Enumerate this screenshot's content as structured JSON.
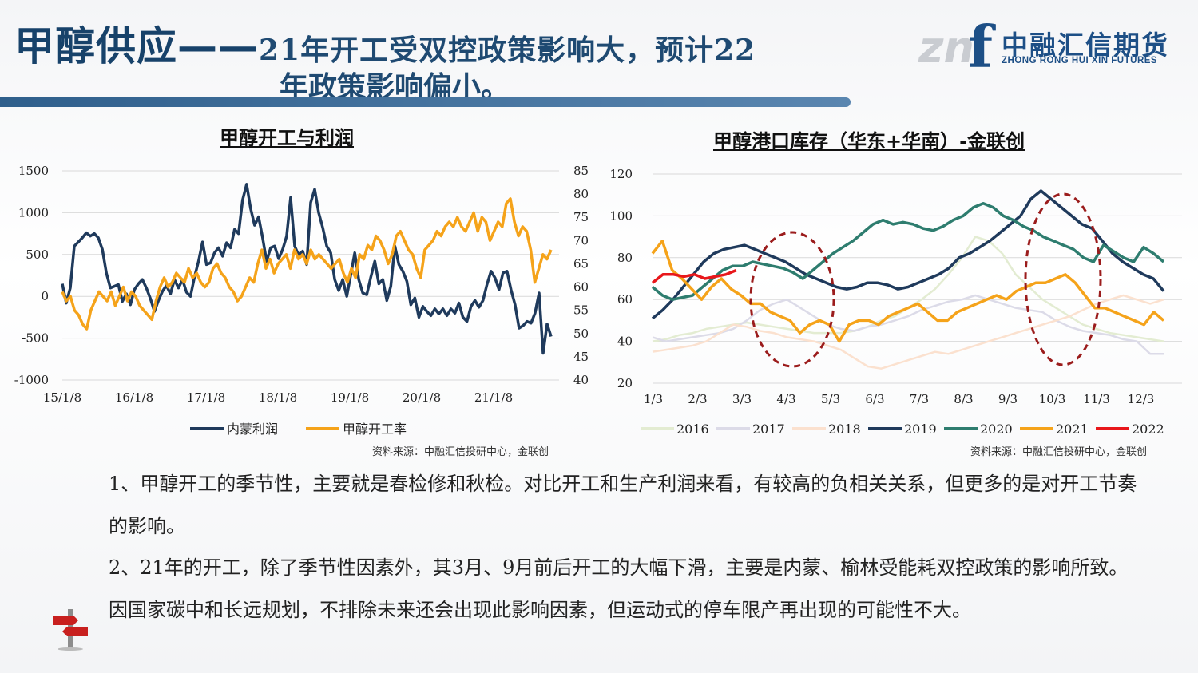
{
  "slide": {
    "title_main": "甲醇供应——",
    "title_rest": "21年开工受双控政策影响大，预计22",
    "title_line2": "年政策影响偏小。"
  },
  "logo": {
    "mark_zn": "zn",
    "mark_f": "f",
    "name_cn": "中融汇信期货",
    "name_en": "ZHONG RONG HUI XIN FUTURES"
  },
  "chart_data": [
    {
      "type": "line",
      "title": "甲醇开工与利润",
      "x_ticks": [
        "15/1/8",
        "16/1/8",
        "17/1/8",
        "18/1/8",
        "19/1/8",
        "20/1/8",
        "21/1/8"
      ],
      "y_left": {
        "ticks": [
          "1500",
          "1000",
          "500",
          "0",
          "-500",
          "-1000"
        ],
        "range": [
          -1000,
          1500
        ]
      },
      "y_right": {
        "ticks": [
          "85",
          "80",
          "75",
          "70",
          "65",
          "60",
          "55",
          "50",
          "45",
          "40"
        ],
        "range": [
          40,
          85
        ]
      },
      "series": [
        {
          "name": "内蒙利润",
          "axis": "left",
          "color": "#1f3a5c",
          "values": [
            150,
            -80,
            100,
            600,
            650,
            700,
            760,
            720,
            750,
            700,
            560,
            280,
            100,
            120,
            140,
            -60,
            30,
            -100,
            80,
            150,
            200,
            100,
            -30,
            -180,
            -50,
            60,
            130,
            30,
            200,
            100,
            200,
            50,
            0,
            230,
            420,
            650,
            380,
            400,
            520,
            580,
            480,
            640,
            580,
            800,
            750,
            1150,
            1340,
            1050,
            850,
            950,
            700,
            420,
            580,
            600,
            450,
            560,
            720,
            1180,
            600,
            490,
            540,
            380,
            1120,
            1280,
            1000,
            820,
            600,
            520,
            200,
            70,
            200,
            0,
            260,
            520,
            200,
            40,
            20,
            230,
            420,
            150,
            200,
            -50,
            120,
            600,
            380,
            300,
            180,
            -100,
            -20,
            -250,
            -120,
            -180,
            -230,
            -150,
            -210,
            -150,
            -230,
            -150,
            -200,
            -80,
            -250,
            -300,
            -120,
            -50,
            -130,
            -50,
            140,
            300,
            220,
            80,
            280,
            300,
            80,
            -100,
            -380,
            -350,
            -300,
            -320,
            -200,
            40,
            -680,
            -330,
            -480
          ]
        },
        {
          "name": "甲醇开工率",
          "axis": "right",
          "color": "#f5a31a",
          "values": [
            59,
            57,
            58,
            55,
            54,
            52,
            51,
            55,
            57,
            59,
            58,
            57,
            59,
            56,
            58,
            60,
            57,
            59,
            58,
            56,
            55,
            54,
            53,
            57,
            60,
            62,
            60,
            61,
            63,
            62,
            61,
            64,
            62,
            63,
            61,
            60,
            61,
            64,
            65,
            63,
            62,
            60,
            59,
            57,
            58,
            60,
            62,
            61,
            65,
            68,
            64,
            66,
            63,
            65,
            66,
            67,
            64,
            68,
            66,
            67,
            65,
            68,
            66,
            67,
            66,
            65,
            64,
            65,
            66,
            63,
            61,
            64,
            62,
            67,
            66,
            69,
            68,
            71,
            70,
            68,
            65,
            67,
            71,
            72,
            70,
            68,
            67,
            64,
            62,
            68,
            69,
            70,
            72,
            71,
            73,
            74,
            73,
            75,
            73,
            72,
            74,
            76,
            72,
            75,
            74,
            70,
            72,
            74,
            73,
            78,
            79,
            74,
            71,
            73,
            72,
            68,
            61,
            64,
            67,
            66,
            68
          ]
        }
      ],
      "source": "资料来源：中融汇信投研中心，金联创"
    },
    {
      "type": "line",
      "title": "甲醇港口库存（华东+华南）-金联创",
      "x_ticks": [
        "1/3",
        "2/3",
        "3/3",
        "4/3",
        "5/3",
        "6/3",
        "7/3",
        "8/3",
        "9/3",
        "10/3",
        "11/3",
        "12/3"
      ],
      "y_ticks": [
        "120",
        "100",
        "80",
        "60",
        "40",
        "20"
      ],
      "y_range": [
        20,
        120
      ],
      "annotations": [
        "dashed ellipse around Apr–May",
        "dashed ellipse around Sep–Oct"
      ],
      "series": [
        {
          "name": "2016",
          "color": "#e3ecd2",
          "values": [
            40,
            41,
            43,
            44,
            46,
            47,
            48,
            49,
            48,
            47,
            46,
            45,
            44,
            44,
            44,
            45,
            47,
            50,
            52,
            56,
            60,
            65,
            72,
            80,
            90,
            88,
            82,
            72,
            66,
            60,
            56,
            52,
            48,
            46,
            44,
            43,
            42,
            41,
            40
          ]
        },
        {
          "name": "2017",
          "color": "#dcdbe8",
          "values": [
            42,
            40,
            41,
            42,
            43,
            44,
            46,
            50,
            55,
            58,
            60,
            56,
            52,
            48,
            46,
            45,
            47,
            48,
            50,
            52,
            55,
            57,
            59,
            60,
            62,
            60,
            58,
            56,
            55,
            54,
            50,
            47,
            45,
            44,
            43,
            41,
            40,
            34,
            34
          ]
        },
        {
          "name": "2018",
          "color": "#fbe1cf",
          "values": [
            35,
            36,
            37,
            38,
            40,
            44,
            48,
            47,
            45,
            44,
            42,
            41,
            40,
            38,
            36,
            32,
            28,
            27,
            29,
            31,
            33,
            35,
            34,
            36,
            38,
            40,
            42,
            44,
            46,
            48,
            50,
            52,
            55,
            58,
            60,
            62,
            60,
            58,
            60
          ]
        },
        {
          "name": "2019",
          "color": "#1f3a5c",
          "values": [
            51,
            55,
            60,
            66,
            72,
            78,
            82,
            84,
            85,
            86,
            84,
            82,
            80,
            78,
            75,
            72,
            70,
            68,
            66,
            65,
            66,
            68,
            68,
            67,
            65,
            66,
            68,
            70,
            72,
            75,
            80,
            82,
            85,
            88,
            92,
            96,
            100,
            108,
            112,
            108,
            104,
            100,
            96,
            94,
            88,
            82,
            78,
            75,
            72,
            70,
            64
          ]
        },
        {
          "name": "2020",
          "color": "#2e7d6f",
          "values": [
            66,
            62,
            60,
            61,
            62,
            66,
            70,
            74,
            76,
            76,
            78,
            77,
            76,
            75,
            73,
            70,
            74,
            78,
            82,
            85,
            88,
            92,
            96,
            98,
            96,
            97,
            96,
            94,
            93,
            95,
            98,
            100,
            104,
            106,
            104,
            100,
            98,
            95,
            93,
            90,
            88,
            86,
            84,
            80,
            78,
            86,
            83,
            80,
            78,
            85,
            82,
            78
          ]
        },
        {
          "name": "2021",
          "color": "#f5a31a",
          "values": [
            82,
            88,
            74,
            70,
            65,
            60,
            66,
            70,
            65,
            62,
            58,
            58,
            54,
            52,
            50,
            44,
            48,
            50,
            48,
            40,
            48,
            50,
            50,
            48,
            52,
            54,
            56,
            58,
            54,
            50,
            50,
            54,
            56,
            58,
            60,
            62,
            60,
            64,
            66,
            68,
            68,
            70,
            72,
            68,
            62,
            56,
            56,
            54,
            52,
            50,
            48,
            54,
            50
          ]
        },
        {
          "name": "2022",
          "color": "#e8171b",
          "values": [
            68,
            72,
            72,
            71,
            72,
            70,
            71,
            72,
            74
          ]
        }
      ],
      "source": "资料来源：中融汇信投研中心，金联创"
    }
  ],
  "body": {
    "para1": "1、甲醇开工的季节性，主要就是春检修和秋检。对比开工和生产利润来看，有较高的负相关关系，但更多的是对开工节奏的影响。",
    "para2": "2、21年的开工，除了季节性因素外，其3月、9月前后开工的大幅下滑，主要是内蒙、榆林受能耗双控政策的影响所致。因国家碳中和长远规划，不排除未来还会出现此影响因素，但运动式的停车限产再出现的可能性不大。"
  }
}
